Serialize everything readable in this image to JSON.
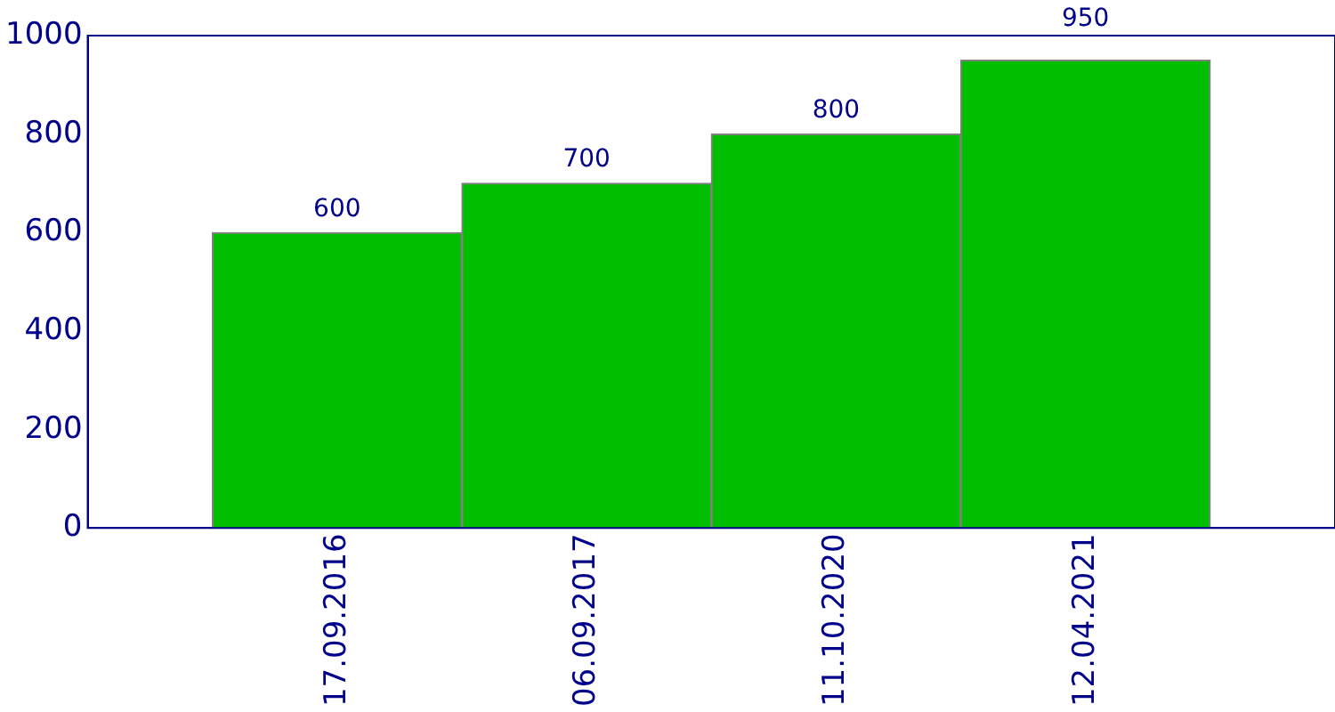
{
  "chart_data": {
    "type": "bar",
    "categories": [
      "17.09.2016",
      "06.09.2017",
      "11.10.2020",
      "12.04.2021"
    ],
    "values": [
      600,
      700,
      800,
      950
    ],
    "color": "#00bf00",
    "ylim": [
      0,
      1000
    ],
    "yticks": [
      0,
      200,
      400,
      600,
      800,
      1000
    ],
    "grid": false,
    "legend": false,
    "data_labels": true
  }
}
